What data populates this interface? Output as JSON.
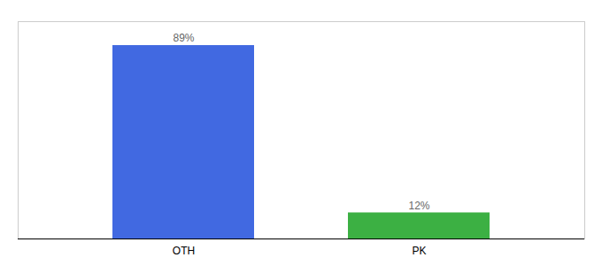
{
  "chart_data": {
    "type": "bar",
    "categories": [
      "OTH",
      "PK"
    ],
    "values": [
      89,
      12
    ],
    "value_labels": [
      "89%",
      "12%"
    ],
    "colors": [
      "#4169E1",
      "#3CB043"
    ],
    "ylim": [
      0,
      100
    ],
    "data_labels": true,
    "tick_labels": "x"
  }
}
